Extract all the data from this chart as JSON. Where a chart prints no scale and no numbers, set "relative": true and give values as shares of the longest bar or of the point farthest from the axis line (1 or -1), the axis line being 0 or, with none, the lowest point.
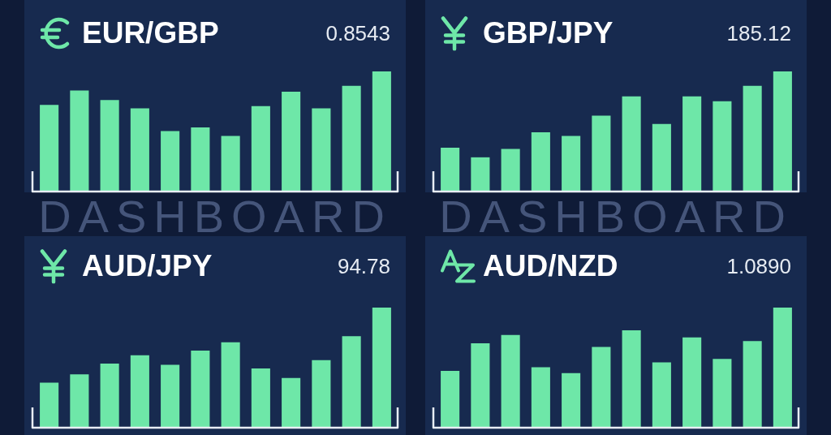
{
  "chart_data": [
    {
      "type": "bar",
      "title": "EUR/GBP",
      "annotations": [
        "0.8543",
        "DASHBOARD"
      ],
      "relative": true,
      "color": "#6ee7a8",
      "categories": [
        null,
        null,
        null,
        null,
        null,
        null,
        null,
        null,
        null,
        null,
        null,
        null
      ],
      "values": [
        0.72,
        0.84,
        0.76,
        0.69,
        0.5,
        0.53,
        0.46,
        0.71,
        0.83,
        0.69,
        0.88,
        1
      ]
    },
    {
      "type": "bar",
      "title": "GBP/JPY",
      "annotations": [
        "185.12",
        "DASHBOARD"
      ],
      "relative": true,
      "color": "#6ee7a8",
      "categories": [
        null,
        null,
        null,
        null,
        null,
        null,
        null,
        null,
        null,
        null,
        null,
        null
      ],
      "values": [
        0.36,
        0.28,
        0.35,
        0.49,
        0.46,
        0.63,
        0.79,
        0.56,
        0.79,
        0.75,
        0.88,
        1
      ]
    },
    {
      "type": "bar",
      "title": "AUD/JPY",
      "annotations": [
        "94.78"
      ],
      "relative": true,
      "color": "#6ee7a8",
      "categories": [
        null,
        null,
        null,
        null,
        null,
        null,
        null,
        null,
        null,
        null,
        null,
        null
      ],
      "values": [
        0.37,
        0.44,
        0.53,
        0.6,
        0.52,
        0.64,
        0.71,
        0.49,
        0.41,
        0.56,
        0.76,
        1
      ]
    },
    {
      "type": "bar",
      "title": "AUD/NZD",
      "annotations": [
        "1.0890"
      ],
      "relative": true,
      "color": "#6ee7a8",
      "categories": [
        null,
        null,
        null,
        null,
        null,
        null,
        null,
        null,
        null,
        null,
        null,
        null
      ],
      "values": [
        0.47,
        0.7,
        0.77,
        0.5,
        0.45,
        0.67,
        0.81,
        0.54,
        0.75,
        0.57,
        0.72,
        1
      ]
    }
  ]
}
